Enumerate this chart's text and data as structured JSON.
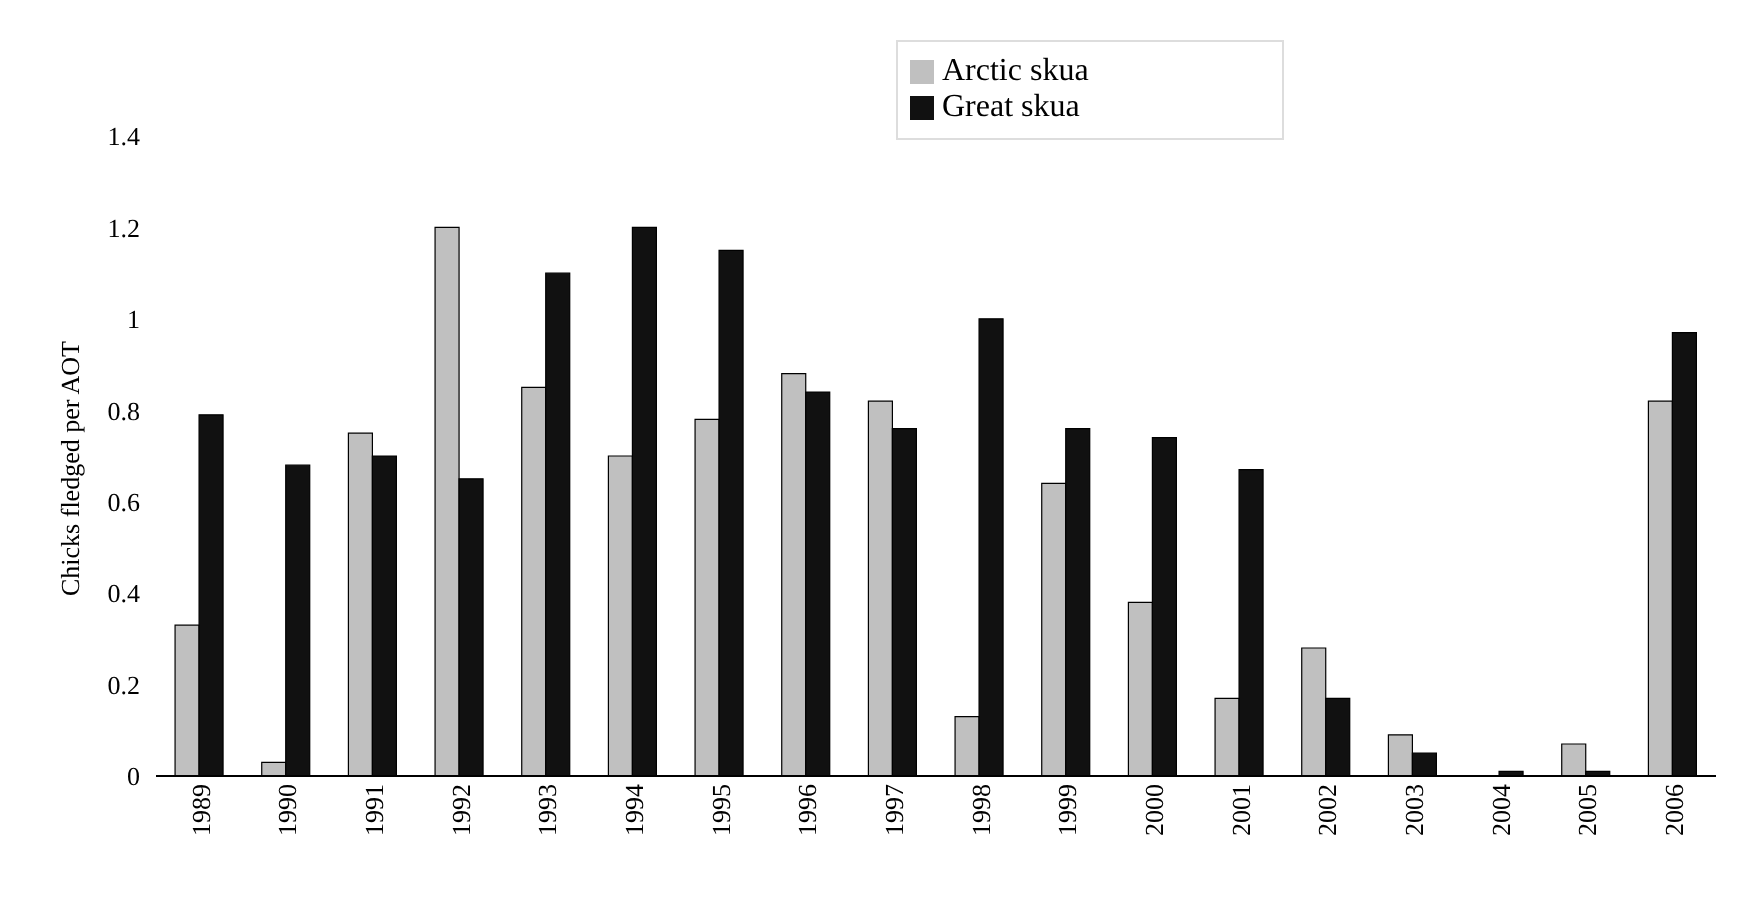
{
  "chart_data": {
    "type": "bar",
    "ylabel": "Chicks fledged per AOT",
    "categories": [
      "1989",
      "1990",
      "1991",
      "1992",
      "1993",
      "1994",
      "1995",
      "1996",
      "1997",
      "1998",
      "1999",
      "2000",
      "2001",
      "2002",
      "2003",
      "2004",
      "2005",
      "2006"
    ],
    "series": [
      {
        "name": "Arctic skua",
        "color": "#c0c0c0",
        "values": [
          0.33,
          0.03,
          0.75,
          1.2,
          0.85,
          0.7,
          0.78,
          0.88,
          0.82,
          0.13,
          0.64,
          0.38,
          0.17,
          0.28,
          0.09,
          0,
          0.07,
          0.82
        ]
      },
      {
        "name": "Great skua",
        "color": "#111111",
        "values": [
          0.79,
          0.68,
          0.7,
          0.65,
          1.1,
          1.2,
          1.15,
          0.84,
          0.76,
          1.0,
          0.76,
          0.74,
          0.67,
          0.17,
          0.05,
          0.01,
          0.01,
          0.97
        ]
      }
    ],
    "ylim": [
      0,
      1.4
    ],
    "yticks": [
      0,
      0.2,
      0.4,
      0.6,
      0.8,
      1,
      1.2,
      1.4
    ],
    "grid": false,
    "legend": "top"
  }
}
